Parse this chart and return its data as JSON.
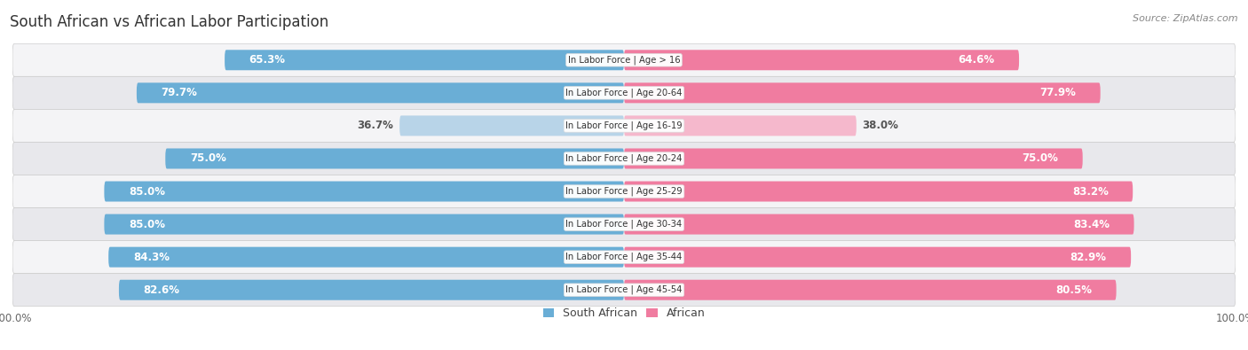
{
  "title": "South African vs African Labor Participation",
  "source": "Source: ZipAtlas.com",
  "categories": [
    "In Labor Force | Age > 16",
    "In Labor Force | Age 20-64",
    "In Labor Force | Age 16-19",
    "In Labor Force | Age 20-24",
    "In Labor Force | Age 25-29",
    "In Labor Force | Age 30-34",
    "In Labor Force | Age 35-44",
    "In Labor Force | Age 45-54"
  ],
  "south_african": [
    65.3,
    79.7,
    36.7,
    75.0,
    85.0,
    85.0,
    84.3,
    82.6
  ],
  "african": [
    64.6,
    77.9,
    38.0,
    75.0,
    83.2,
    83.4,
    82.9,
    80.5
  ],
  "blue_color": "#6aaed6",
  "blue_light_color": "#b8d4e8",
  "pink_color": "#f07ca0",
  "pink_light_color": "#f5b8cc",
  "row_bg_light": "#f4f4f6",
  "row_bg_dark": "#e8e8ec",
  "text_white": "#ffffff",
  "text_dark": "#555555",
  "label_fontsize": 8.5,
  "title_fontsize": 12,
  "legend_fontsize": 9,
  "max_value": 100.0,
  "bar_height": 0.62,
  "light_rows": [
    2
  ]
}
